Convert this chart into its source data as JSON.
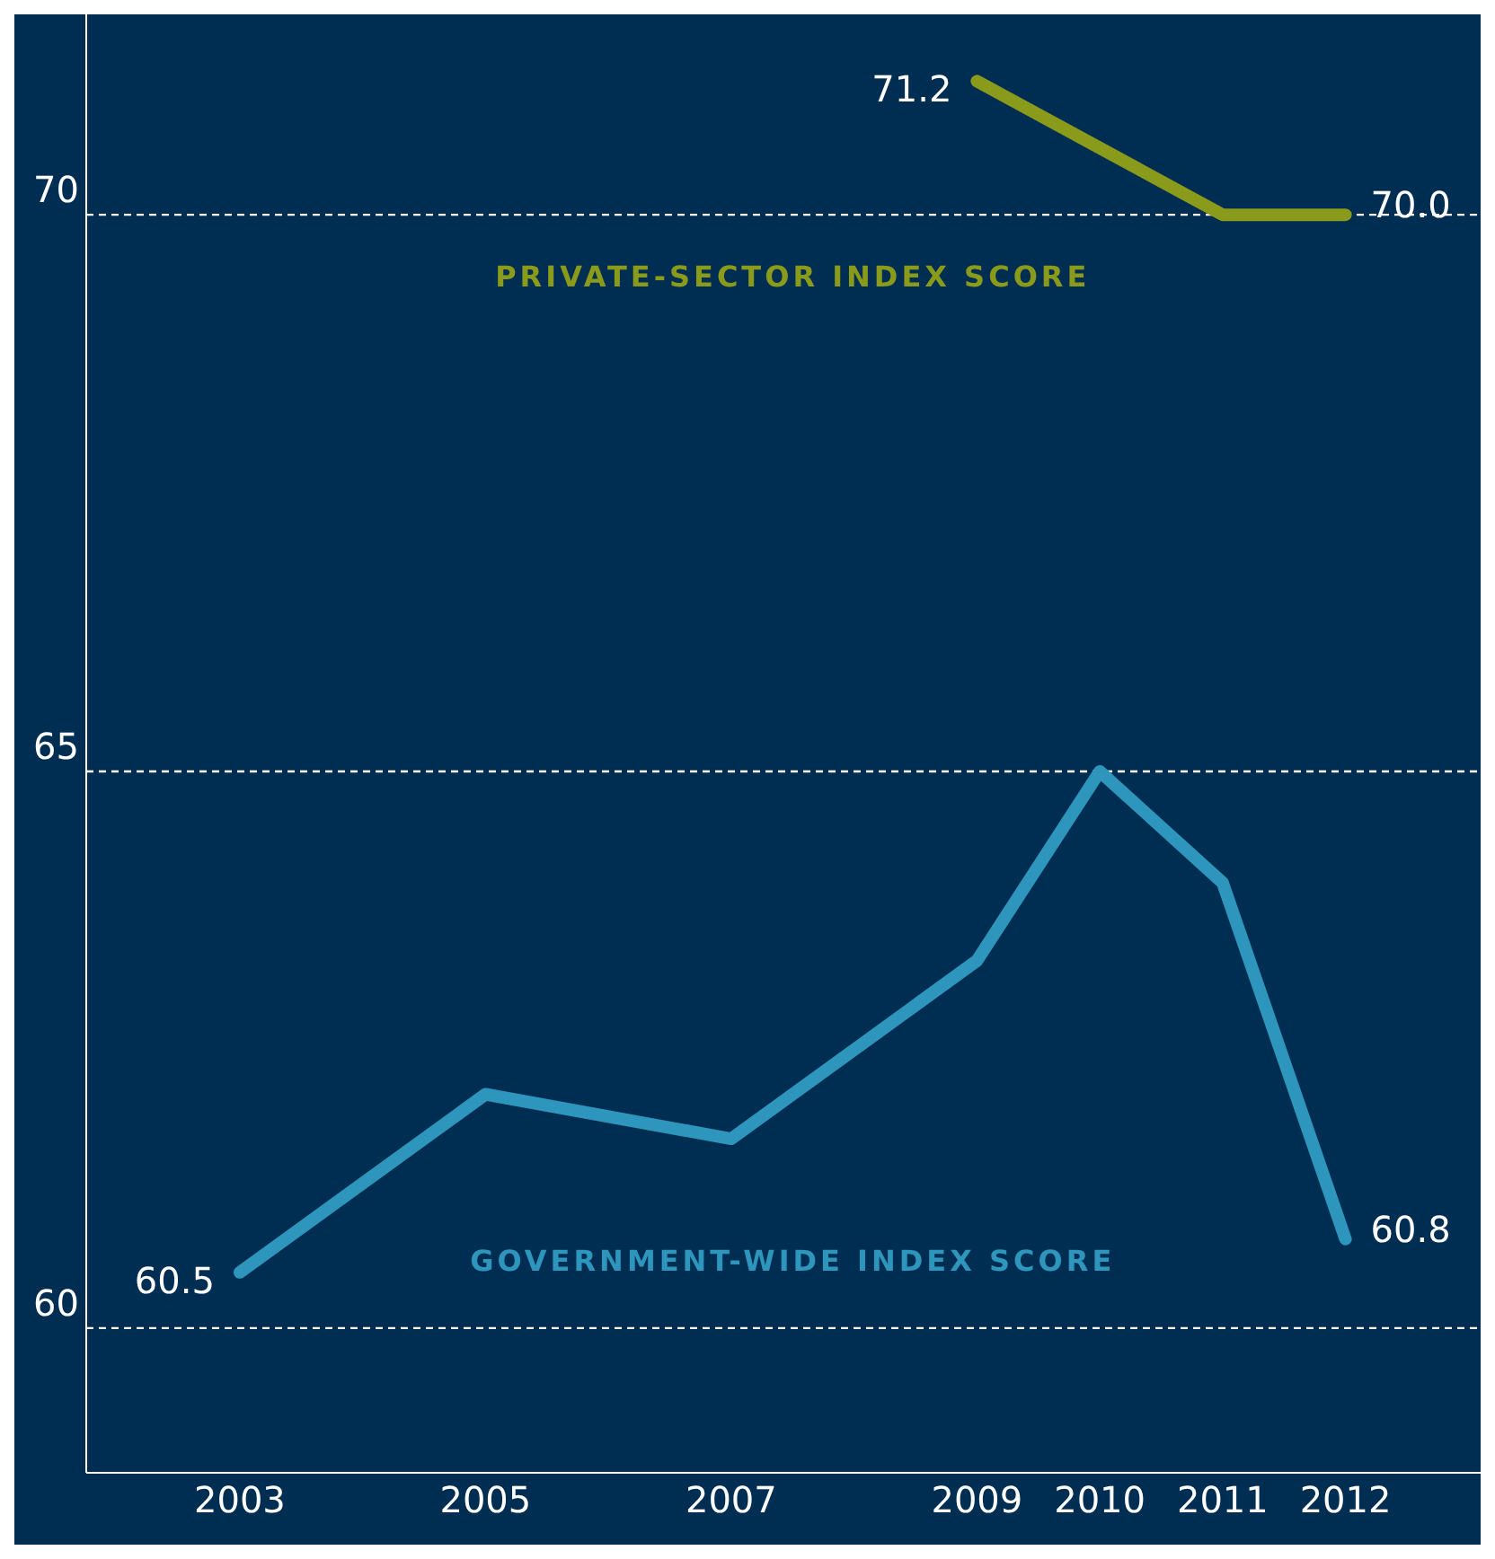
{
  "chart_data": {
    "type": "line",
    "x": [
      2003,
      2005,
      2007,
      2009,
      2010,
      2011,
      2012
    ],
    "series": [
      {
        "name": "PRIVATE-SECTOR INDEX SCORE",
        "color": "#8a9a1b",
        "x": [
          2009,
          2010,
          2011,
          2012
        ],
        "values": [
          71.2,
          70.6,
          70.0,
          70.0
        ],
        "value_labels": [
          "71.2",
          null,
          null,
          "70.0"
        ]
      },
      {
        "name": "GOVERNMENT-WIDE INDEX SCORE",
        "color": "#2e96bd",
        "values": [
          60.5,
          62.1,
          61.7,
          63.3,
          65.0,
          64.0,
          60.8
        ],
        "value_labels": [
          "60.5",
          null,
          null,
          null,
          null,
          null,
          "60.8"
        ]
      }
    ],
    "xlim": [
      2001.75,
      2013.1
    ],
    "xticks": [
      2003,
      2005,
      2007,
      2009,
      2010,
      2011,
      2012
    ],
    "ylim": [
      58.7,
      71.8
    ],
    "yticks": [
      60,
      65,
      70
    ],
    "grid": "y",
    "marker": "none",
    "line_style": "solid"
  }
}
